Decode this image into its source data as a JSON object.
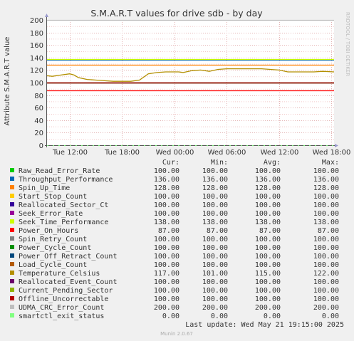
{
  "chart_data": {
    "type": "line",
    "title": "S.M.A.R.T values for drive sdb - by day",
    "ylabel": "Attribute S.M.A.R.T value",
    "side_label": "RRDTOOL / TOBI OETIKER",
    "ylim": [
      0,
      200
    ],
    "y_ticks": [
      0,
      20,
      40,
      60,
      80,
      100,
      120,
      140,
      160,
      180,
      200
    ],
    "x_ticks": [
      "Tue 12:00",
      "Tue 18:00",
      "Wed 00:00",
      "Wed 06:00",
      "Wed 12:00",
      "Wed 18:00"
    ],
    "x_range_hours": [
      -2.6,
      30.3
    ],
    "x_tick_hours": [
      0,
      6,
      12,
      18,
      24,
      30
    ],
    "columns": [
      "Cur:",
      "Min:",
      "Avg:",
      "Max:"
    ],
    "series": [
      {
        "name": "Raw_Read_Error_Rate",
        "color": "#00cc00",
        "cur": "100.00",
        "min": "100.00",
        "avg": "100.00",
        "max": "100.00",
        "level": 100
      },
      {
        "name": "Throughput_Performance",
        "color": "#0066b3",
        "cur": "136.00",
        "min": "136.00",
        "avg": "136.00",
        "max": "136.00",
        "level": 136
      },
      {
        "name": "Spin_Up_Time",
        "color": "#ff8000",
        "cur": "128.00",
        "min": "128.00",
        "avg": "128.00",
        "max": "128.00",
        "level": 128
      },
      {
        "name": "Start_Stop_Count",
        "color": "#ffcc00",
        "cur": "100.00",
        "min": "100.00",
        "avg": "100.00",
        "max": "100.00",
        "level": 100
      },
      {
        "name": "Reallocated_Sector_Ct",
        "color": "#330099",
        "cur": "100.00",
        "min": "100.00",
        "avg": "100.00",
        "max": "100.00",
        "level": 100
      },
      {
        "name": "Seek_Error_Rate",
        "color": "#990099",
        "cur": "100.00",
        "min": "100.00",
        "avg": "100.00",
        "max": "100.00",
        "level": 100
      },
      {
        "name": "Seek_Time_Performance",
        "color": "#ccff00",
        "cur": "138.00",
        "min": "138.00",
        "avg": "138.00",
        "max": "138.00",
        "level": 138
      },
      {
        "name": "Power_On_Hours",
        "color": "#ff0000",
        "cur": "87.00",
        "min": "87.00",
        "avg": "87.00",
        "max": "87.00",
        "level": 87
      },
      {
        "name": "Spin_Retry_Count",
        "color": "#808080",
        "cur": "100.00",
        "min": "100.00",
        "avg": "100.00",
        "max": "100.00",
        "level": 100
      },
      {
        "name": "Power_Cycle_Count",
        "color": "#008f00",
        "cur": "100.00",
        "min": "100.00",
        "avg": "100.00",
        "max": "100.00",
        "level": 100
      },
      {
        "name": "Power_Off_Retract_Count",
        "color": "#00487d",
        "cur": "100.00",
        "min": "100.00",
        "avg": "100.00",
        "max": "100.00",
        "level": 100
      },
      {
        "name": "Load_Cycle_Count",
        "color": "#b35a00",
        "cur": "100.00",
        "min": "100.00",
        "avg": "100.00",
        "max": "100.00",
        "level": 100
      },
      {
        "name": "Temperature_Celsius",
        "color": "#b38f00",
        "cur": "117.00",
        "min": "101.00",
        "avg": "115.00",
        "max": "122.00",
        "points": [
          [
            -2.6,
            111
          ],
          [
            -2.0,
            110
          ],
          [
            -1.0,
            112
          ],
          [
            0.0,
            114
          ],
          [
            0.5,
            112
          ],
          [
            1.0,
            108
          ],
          [
            2.0,
            105
          ],
          [
            3.0,
            104
          ],
          [
            4.0,
            103
          ],
          [
            5.0,
            102
          ],
          [
            6.0,
            102
          ],
          [
            7.0,
            102
          ],
          [
            8.0,
            104
          ],
          [
            8.5,
            109
          ],
          [
            9.0,
            114
          ],
          [
            10.0,
            116
          ],
          [
            11.0,
            117
          ],
          [
            12.5,
            117
          ],
          [
            13.0,
            116
          ],
          [
            14.0,
            119
          ],
          [
            15.0,
            120
          ],
          [
            16.0,
            118
          ],
          [
            17.0,
            121
          ],
          [
            18.0,
            122
          ],
          [
            20.0,
            122
          ],
          [
            22.0,
            122
          ],
          [
            23.0,
            121
          ],
          [
            24.0,
            120
          ],
          [
            25.0,
            117
          ],
          [
            27.0,
            117
          ],
          [
            28.0,
            117
          ],
          [
            29.0,
            118
          ],
          [
            30.3,
            117
          ]
        ]
      },
      {
        "name": "Reallocated_Event_Count",
        "color": "#6b006b",
        "cur": "100.00",
        "min": "100.00",
        "avg": "100.00",
        "max": "100.00",
        "level": 100
      },
      {
        "name": "Current_Pending_Sector",
        "color": "#8fb300",
        "cur": "100.00",
        "min": "100.00",
        "avg": "100.00",
        "max": "100.00",
        "level": 100
      },
      {
        "name": "Offline_Uncorrectable",
        "color": "#b30000",
        "cur": "100.00",
        "min": "100.00",
        "avg": "100.00",
        "max": "100.00",
        "level": 100
      },
      {
        "name": "UDMA_CRC_Error_Count",
        "color": "#bebebe",
        "cur": "200.00",
        "min": "200.00",
        "avg": "200.00",
        "max": "200.00",
        "level": 200
      },
      {
        "name": "smartctl_exit_status",
        "color": "#80ff80",
        "cur": "0.00",
        "min": "0.00",
        "avg": "0.00",
        "max": "0.00",
        "level": 0
      }
    ],
    "last_update": "Last update: Wed May 21 19:15:00 2025",
    "footer": "Munin 2.0.67"
  }
}
